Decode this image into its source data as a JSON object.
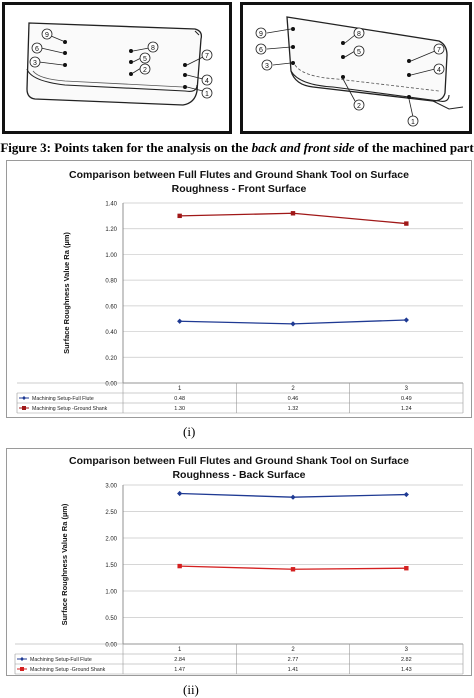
{
  "figure3": {
    "caption_prefix": "Figure 3: Points taken for the analysis on the ",
    "caption_emph": "back and front side",
    "caption_suffix": " of the machined part",
    "left_point_labels": [
      "9",
      "6",
      "3",
      "8",
      "5",
      "2",
      "7",
      "4",
      "1"
    ],
    "right_point_labels": [
      "9",
      "6",
      "3",
      "8",
      "5",
      "7",
      "4",
      "2",
      "1"
    ]
  },
  "chart_data": [
    {
      "type": "line",
      "title_line1": "Comparison between Full Flutes and Ground Shank Tool on Surface",
      "title_line2": "Roughness  - Front Surface",
      "ylabel": "Surface Roughness  Value Ra (µm)",
      "categories": [
        "1",
        "2",
        "3"
      ],
      "ylim": [
        0,
        1.4
      ],
      "y_ticks": [
        "0.00",
        "0.20",
        "0.40",
        "0.60",
        "0.80",
        "1.00",
        "1.20",
        "1.40"
      ],
      "grid": true,
      "legend": "data-table-below",
      "series": [
        {
          "name": "Machining Setup-Full Flute",
          "values": [
            0.48,
            0.46,
            0.49
          ],
          "labels": [
            "0.48",
            "0.46",
            "0.49"
          ],
          "color": "#1f3a93",
          "marker": "diamond"
        },
        {
          "name": "Machining Setup -Ground Shank",
          "values": [
            1.3,
            1.32,
            1.24
          ],
          "labels": [
            "1.30",
            "1.32",
            "1.24"
          ],
          "color": "#a01818",
          "marker": "square"
        }
      ],
      "caption": "(i)"
    },
    {
      "type": "line",
      "title_line1": "Comparison between Full Flutes and Ground Shank Tool on Surface",
      "title_line2": "Roughness  - Back Surface",
      "ylabel": "Surface Roughness  Value Ra (µm)",
      "categories": [
        "1",
        "2",
        "3"
      ],
      "ylim": [
        0,
        3
      ],
      "y_ticks": [
        "0.00",
        "0.50",
        "1.00",
        "1.50",
        "2.00",
        "2.50",
        "3.00"
      ],
      "grid": true,
      "legend": "data-table-below",
      "series": [
        {
          "name": "Machining Setup-Full Flute",
          "values": [
            2.84,
            2.77,
            2.82
          ],
          "labels": [
            "2.84",
            "2.77",
            "2.82"
          ],
          "color": "#1f3a93",
          "marker": "diamond"
        },
        {
          "name": "Machining Setup -Ground Shank",
          "values": [
            1.47,
            1.41,
            1.43
          ],
          "labels": [
            "1.47",
            "1.41",
            "1.43"
          ],
          "color": "#d42020",
          "marker": "square"
        }
      ],
      "caption": "(ii)"
    }
  ]
}
